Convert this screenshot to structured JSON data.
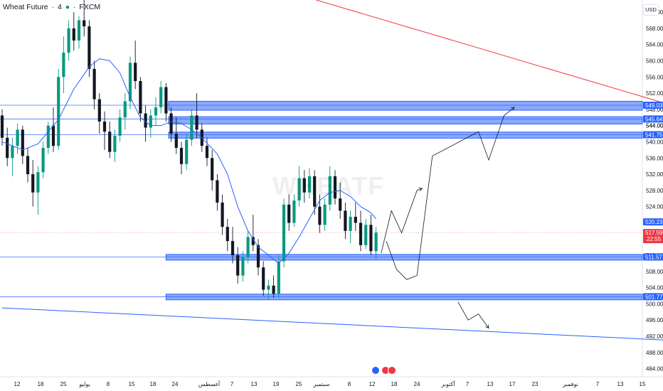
{
  "header": {
    "title": "Wheat Future",
    "interval": "4",
    "exchange": "FXCM"
  },
  "currency_button": "USD",
  "watermark": "WHEATF",
  "colors": {
    "up": "#089981",
    "down": "#131722",
    "zone": "#2962ff",
    "ma": "#2962ff",
    "trend_red": "#f23645",
    "price_badge": "#f23645",
    "level_badge": "#2962ff"
  },
  "chart_data": {
    "type": "candlestick",
    "title": "Wheat Future · 4 · FXCM",
    "ylim": [
      482.0,
      575.0
    ],
    "y_ticks": [
      "572.00",
      "568.00",
      "564.00",
      "560.00",
      "556.00",
      "552.00",
      "548.00",
      "544.00",
      "540.00",
      "536.00",
      "532.00",
      "528.00",
      "524.00",
      "520.00",
      "516.00",
      "512.00",
      "508.00",
      "504.00",
      "500.00",
      "496.00",
      "492.00",
      "488.00",
      "484.00"
    ],
    "x_ticks": [
      "12",
      "18",
      "25",
      "يوليو",
      "8",
      "15",
      "18",
      "24",
      "أغسطس",
      "7",
      "13",
      "19",
      "25",
      "سبتمبر",
      "8",
      "12",
      "18",
      "24",
      "أكتوبر",
      "7",
      "13",
      "17",
      "23",
      "نوفمبر",
      "7",
      "13",
      "15"
    ],
    "candles": [
      {
        "o": 546.5,
        "h": 548.0,
        "l": 539.0,
        "c": 541.0
      },
      {
        "o": 541.0,
        "h": 543.5,
        "l": 534.0,
        "c": 536.0
      },
      {
        "o": 536.0,
        "h": 541.0,
        "l": 531.5,
        "c": 539.0
      },
      {
        "o": 539.0,
        "h": 544.5,
        "l": 537.0,
        "c": 543.0
      },
      {
        "o": 543.0,
        "h": 544.0,
        "l": 534.5,
        "c": 536.5
      },
      {
        "o": 536.5,
        "h": 538.5,
        "l": 530.0,
        "c": 532.0
      },
      {
        "o": 532.0,
        "h": 535.5,
        "l": 524.0,
        "c": 527.5
      },
      {
        "o": 527.5,
        "h": 534.0,
        "l": 522.0,
        "c": 532.5
      },
      {
        "o": 532.5,
        "h": 540.0,
        "l": 531.0,
        "c": 538.5
      },
      {
        "o": 538.5,
        "h": 545.0,
        "l": 537.0,
        "c": 544.0
      },
      {
        "o": 544.0,
        "h": 548.5,
        "l": 537.5,
        "c": 539.0
      },
      {
        "o": 539.0,
        "h": 558.0,
        "l": 538.0,
        "c": 556.0
      },
      {
        "o": 556.0,
        "h": 566.0,
        "l": 552.0,
        "c": 562.0
      },
      {
        "o": 562.0,
        "h": 570.0,
        "l": 560.0,
        "c": 568.0
      },
      {
        "o": 568.0,
        "h": 572.0,
        "l": 562.5,
        "c": 565.0
      },
      {
        "o": 565.0,
        "h": 571.0,
        "l": 563.0,
        "c": 570.0
      },
      {
        "o": 570.0,
        "h": 576.0,
        "l": 566.0,
        "c": 568.5
      },
      {
        "o": 568.5,
        "h": 570.0,
        "l": 556.0,
        "c": 558.0
      },
      {
        "o": 558.0,
        "h": 560.0,
        "l": 548.0,
        "c": 550.5
      },
      {
        "o": 550.5,
        "h": 552.0,
        "l": 542.0,
        "c": 545.0
      },
      {
        "o": 545.0,
        "h": 547.5,
        "l": 538.0,
        "c": 542.5
      },
      {
        "o": 542.5,
        "h": 545.0,
        "l": 536.0,
        "c": 537.5
      },
      {
        "o": 537.5,
        "h": 543.0,
        "l": 535.0,
        "c": 541.5
      },
      {
        "o": 541.5,
        "h": 548.0,
        "l": 540.0,
        "c": 546.0
      },
      {
        "o": 546.0,
        "h": 552.0,
        "l": 543.0,
        "c": 550.0
      },
      {
        "o": 550.0,
        "h": 561.0,
        "l": 548.0,
        "c": 559.5
      },
      {
        "o": 559.5,
        "h": 565.0,
        "l": 553.0,
        "c": 555.0
      },
      {
        "o": 555.0,
        "h": 556.0,
        "l": 545.0,
        "c": 547.0
      },
      {
        "o": 547.0,
        "h": 549.0,
        "l": 540.0,
        "c": 543.5
      },
      {
        "o": 543.5,
        "h": 548.0,
        "l": 541.0,
        "c": 546.5
      },
      {
        "o": 546.5,
        "h": 551.0,
        "l": 544.0,
        "c": 548.5
      },
      {
        "o": 548.5,
        "h": 555.0,
        "l": 547.0,
        "c": 553.5
      },
      {
        "o": 553.5,
        "h": 554.5,
        "l": 545.0,
        "c": 547.0
      },
      {
        "o": 547.0,
        "h": 548.5,
        "l": 540.0,
        "c": 542.0
      },
      {
        "o": 542.0,
        "h": 546.0,
        "l": 537.0,
        "c": 538.5
      },
      {
        "o": 538.5,
        "h": 540.0,
        "l": 532.0,
        "c": 534.5
      },
      {
        "o": 534.5,
        "h": 542.0,
        "l": 533.0,
        "c": 540.5
      },
      {
        "o": 540.5,
        "h": 548.0,
        "l": 539.0,
        "c": 546.5
      },
      {
        "o": 546.5,
        "h": 552.0,
        "l": 541.0,
        "c": 543.0
      },
      {
        "o": 543.0,
        "h": 544.5,
        "l": 537.5,
        "c": 539.0
      },
      {
        "o": 539.0,
        "h": 541.0,
        "l": 534.0,
        "c": 536.0
      },
      {
        "o": 536.0,
        "h": 538.0,
        "l": 528.0,
        "c": 530.5
      },
      {
        "o": 530.5,
        "h": 532.0,
        "l": 523.0,
        "c": 525.0
      },
      {
        "o": 525.0,
        "h": 527.0,
        "l": 517.0,
        "c": 519.0
      },
      {
        "o": 519.0,
        "h": 521.0,
        "l": 513.0,
        "c": 515.5
      },
      {
        "o": 515.5,
        "h": 519.0,
        "l": 510.0,
        "c": 512.0
      },
      {
        "o": 512.0,
        "h": 514.0,
        "l": 505.0,
        "c": 507.0
      },
      {
        "o": 507.0,
        "h": 513.0,
        "l": 505.5,
        "c": 511.5
      },
      {
        "o": 511.5,
        "h": 518.0,
        "l": 510.0,
        "c": 516.5
      },
      {
        "o": 516.5,
        "h": 522.0,
        "l": 513.0,
        "c": 514.5
      },
      {
        "o": 514.5,
        "h": 516.0,
        "l": 507.0,
        "c": 509.0
      },
      {
        "o": 509.0,
        "h": 510.5,
        "l": 502.0,
        "c": 503.5
      },
      {
        "o": 503.5,
        "h": 506.0,
        "l": 501.0,
        "c": 504.5
      },
      {
        "o": 504.5,
        "h": 507.0,
        "l": 501.5,
        "c": 502.5
      },
      {
        "o": 502.5,
        "h": 512.0,
        "l": 501.5,
        "c": 510.5
      },
      {
        "o": 510.5,
        "h": 526.0,
        "l": 509.0,
        "c": 524.5
      },
      {
        "o": 524.5,
        "h": 527.0,
        "l": 518.0,
        "c": 520.0
      },
      {
        "o": 520.0,
        "h": 527.0,
        "l": 519.0,
        "c": 525.5
      },
      {
        "o": 525.5,
        "h": 534.0,
        "l": 524.0,
        "c": 531.0
      },
      {
        "o": 531.0,
        "h": 533.0,
        "l": 525.0,
        "c": 527.5
      },
      {
        "o": 527.5,
        "h": 533.5,
        "l": 526.0,
        "c": 531.5
      },
      {
        "o": 531.5,
        "h": 533.0,
        "l": 522.0,
        "c": 524.0
      },
      {
        "o": 524.0,
        "h": 527.0,
        "l": 517.5,
        "c": 519.5
      },
      {
        "o": 519.5,
        "h": 526.0,
        "l": 518.0,
        "c": 524.5
      },
      {
        "o": 524.5,
        "h": 534.0,
        "l": 523.0,
        "c": 531.5
      },
      {
        "o": 531.5,
        "h": 533.0,
        "l": 524.5,
        "c": 526.0
      },
      {
        "o": 526.0,
        "h": 530.0,
        "l": 521.0,
        "c": 523.0
      },
      {
        "o": 523.0,
        "h": 525.0,
        "l": 516.0,
        "c": 518.0
      },
      {
        "o": 518.0,
        "h": 523.0,
        "l": 515.0,
        "c": 521.5
      },
      {
        "o": 521.5,
        "h": 525.0,
        "l": 518.0,
        "c": 520.0
      },
      {
        "o": 520.0,
        "h": 523.0,
        "l": 513.0,
        "c": 514.5
      },
      {
        "o": 514.5,
        "h": 521.0,
        "l": 513.5,
        "c": 519.5
      },
      {
        "o": 519.5,
        "h": 522.0,
        "l": 512.0,
        "c": 513.0
      },
      {
        "o": 513.0,
        "h": 519.0,
        "l": 511.0,
        "c": 517.6
      }
    ],
    "moving_average": [
      {
        "x": 0.0,
        "y": 540.0
      },
      {
        "x": 4.0,
        "y": 538.0
      },
      {
        "x": 7.0,
        "y": 539.5
      },
      {
        "x": 11.0,
        "y": 545.5
      },
      {
        "x": 14.0,
        "y": 553.0
      },
      {
        "x": 17.0,
        "y": 558.5
      },
      {
        "x": 19.0,
        "y": 560.5
      },
      {
        "x": 21.0,
        "y": 560.0
      },
      {
        "x": 23.0,
        "y": 557.0
      },
      {
        "x": 25.0,
        "y": 551.0
      },
      {
        "x": 27.0,
        "y": 546.0
      },
      {
        "x": 29.0,
        "y": 544.0
      },
      {
        "x": 31.0,
        "y": 544.0
      },
      {
        "x": 33.0,
        "y": 545.0
      },
      {
        "x": 35.0,
        "y": 544.5
      },
      {
        "x": 37.0,
        "y": 543.0
      },
      {
        "x": 39.0,
        "y": 541.0
      },
      {
        "x": 42.0,
        "y": 537.0
      },
      {
        "x": 44.0,
        "y": 532.0
      },
      {
        "x": 46.0,
        "y": 524.0
      },
      {
        "x": 48.0,
        "y": 518.0
      },
      {
        "x": 50.0,
        "y": 514.0
      },
      {
        "x": 52.0,
        "y": 512.0
      },
      {
        "x": 54.0,
        "y": 510.0
      },
      {
        "x": 56.0,
        "y": 512.5
      },
      {
        "x": 58.0,
        "y": 516.5
      },
      {
        "x": 60.0,
        "y": 521.0
      },
      {
        "x": 62.0,
        "y": 525.5
      },
      {
        "x": 64.0,
        "y": 527.5
      },
      {
        "x": 66.0,
        "y": 528.0
      },
      {
        "x": 68.0,
        "y": 526.5
      },
      {
        "x": 70.0,
        "y": 524.0
      },
      {
        "x": 72.0,
        "y": 522.5
      },
      {
        "x": 73.0,
        "y": 521.0
      }
    ],
    "zones": [
      {
        "label": "549.03",
        "top": 550.0,
        "bottom": 547.8,
        "start": 32.5
      },
      {
        "label": "545.64",
        "top": 546.2,
        "bottom": 544.4,
        "start": 32.5
      },
      {
        "label": "541.75",
        "top": 542.4,
        "bottom": 540.9,
        "start": 32.5
      },
      {
        "label": "511.57",
        "top": 512.2,
        "bottom": 510.8,
        "start": 32.0
      },
      {
        "label": "501.77",
        "top": 502.4,
        "bottom": 501.0,
        "start": 32.0
      }
    ],
    "level_lines": [
      549.03,
      545.64,
      541.75,
      511.57,
      501.77
    ],
    "current_price": {
      "label": "517.59",
      "value": 517.59,
      "countdown": "22:55"
    },
    "red_trendline": [
      {
        "x": 56.0,
        "y": 577.0
      },
      {
        "x": 142.0,
        "y": 544.8
      }
    ],
    "blue_trendline": [
      {
        "x": 0.0,
        "y": 499.0
      },
      {
        "x": 150.0,
        "y": 489.8
      }
    ],
    "projection_path_a": [
      {
        "x": 74.0,
        "y": 512.5
      },
      {
        "x": 76.0,
        "y": 523.0
      },
      {
        "x": 78.0,
        "y": 517.5
      },
      {
        "x": 81.0,
        "y": 528.0
      },
      {
        "x": 82.0,
        "y": 528.5
      }
    ],
    "projection_path_b": [
      {
        "x": 75.0,
        "y": 515.5
      },
      {
        "x": 77.0,
        "y": 508.5
      },
      {
        "x": 79.0,
        "y": 506.0
      },
      {
        "x": 81.0,
        "y": 507.0
      },
      {
        "x": 84.0,
        "y": 536.5
      },
      {
        "x": 93.0,
        "y": 542.5
      },
      {
        "x": 95.0,
        "y": 535.5
      },
      {
        "x": 98.0,
        "y": 546.5
      },
      {
        "x": 100.0,
        "y": 548.5
      }
    ],
    "projection_path_c": [
      {
        "x": 89.0,
        "y": 500.5
      },
      {
        "x": 91.0,
        "y": 496.0
      },
      {
        "x": 93.0,
        "y": 497.5
      },
      {
        "x": 95.0,
        "y": 494.0
      }
    ],
    "mid_badge": {
      "label": "520.23",
      "value": 520.23
    },
    "axis_extra_labels": [
      "544.00"
    ]
  }
}
